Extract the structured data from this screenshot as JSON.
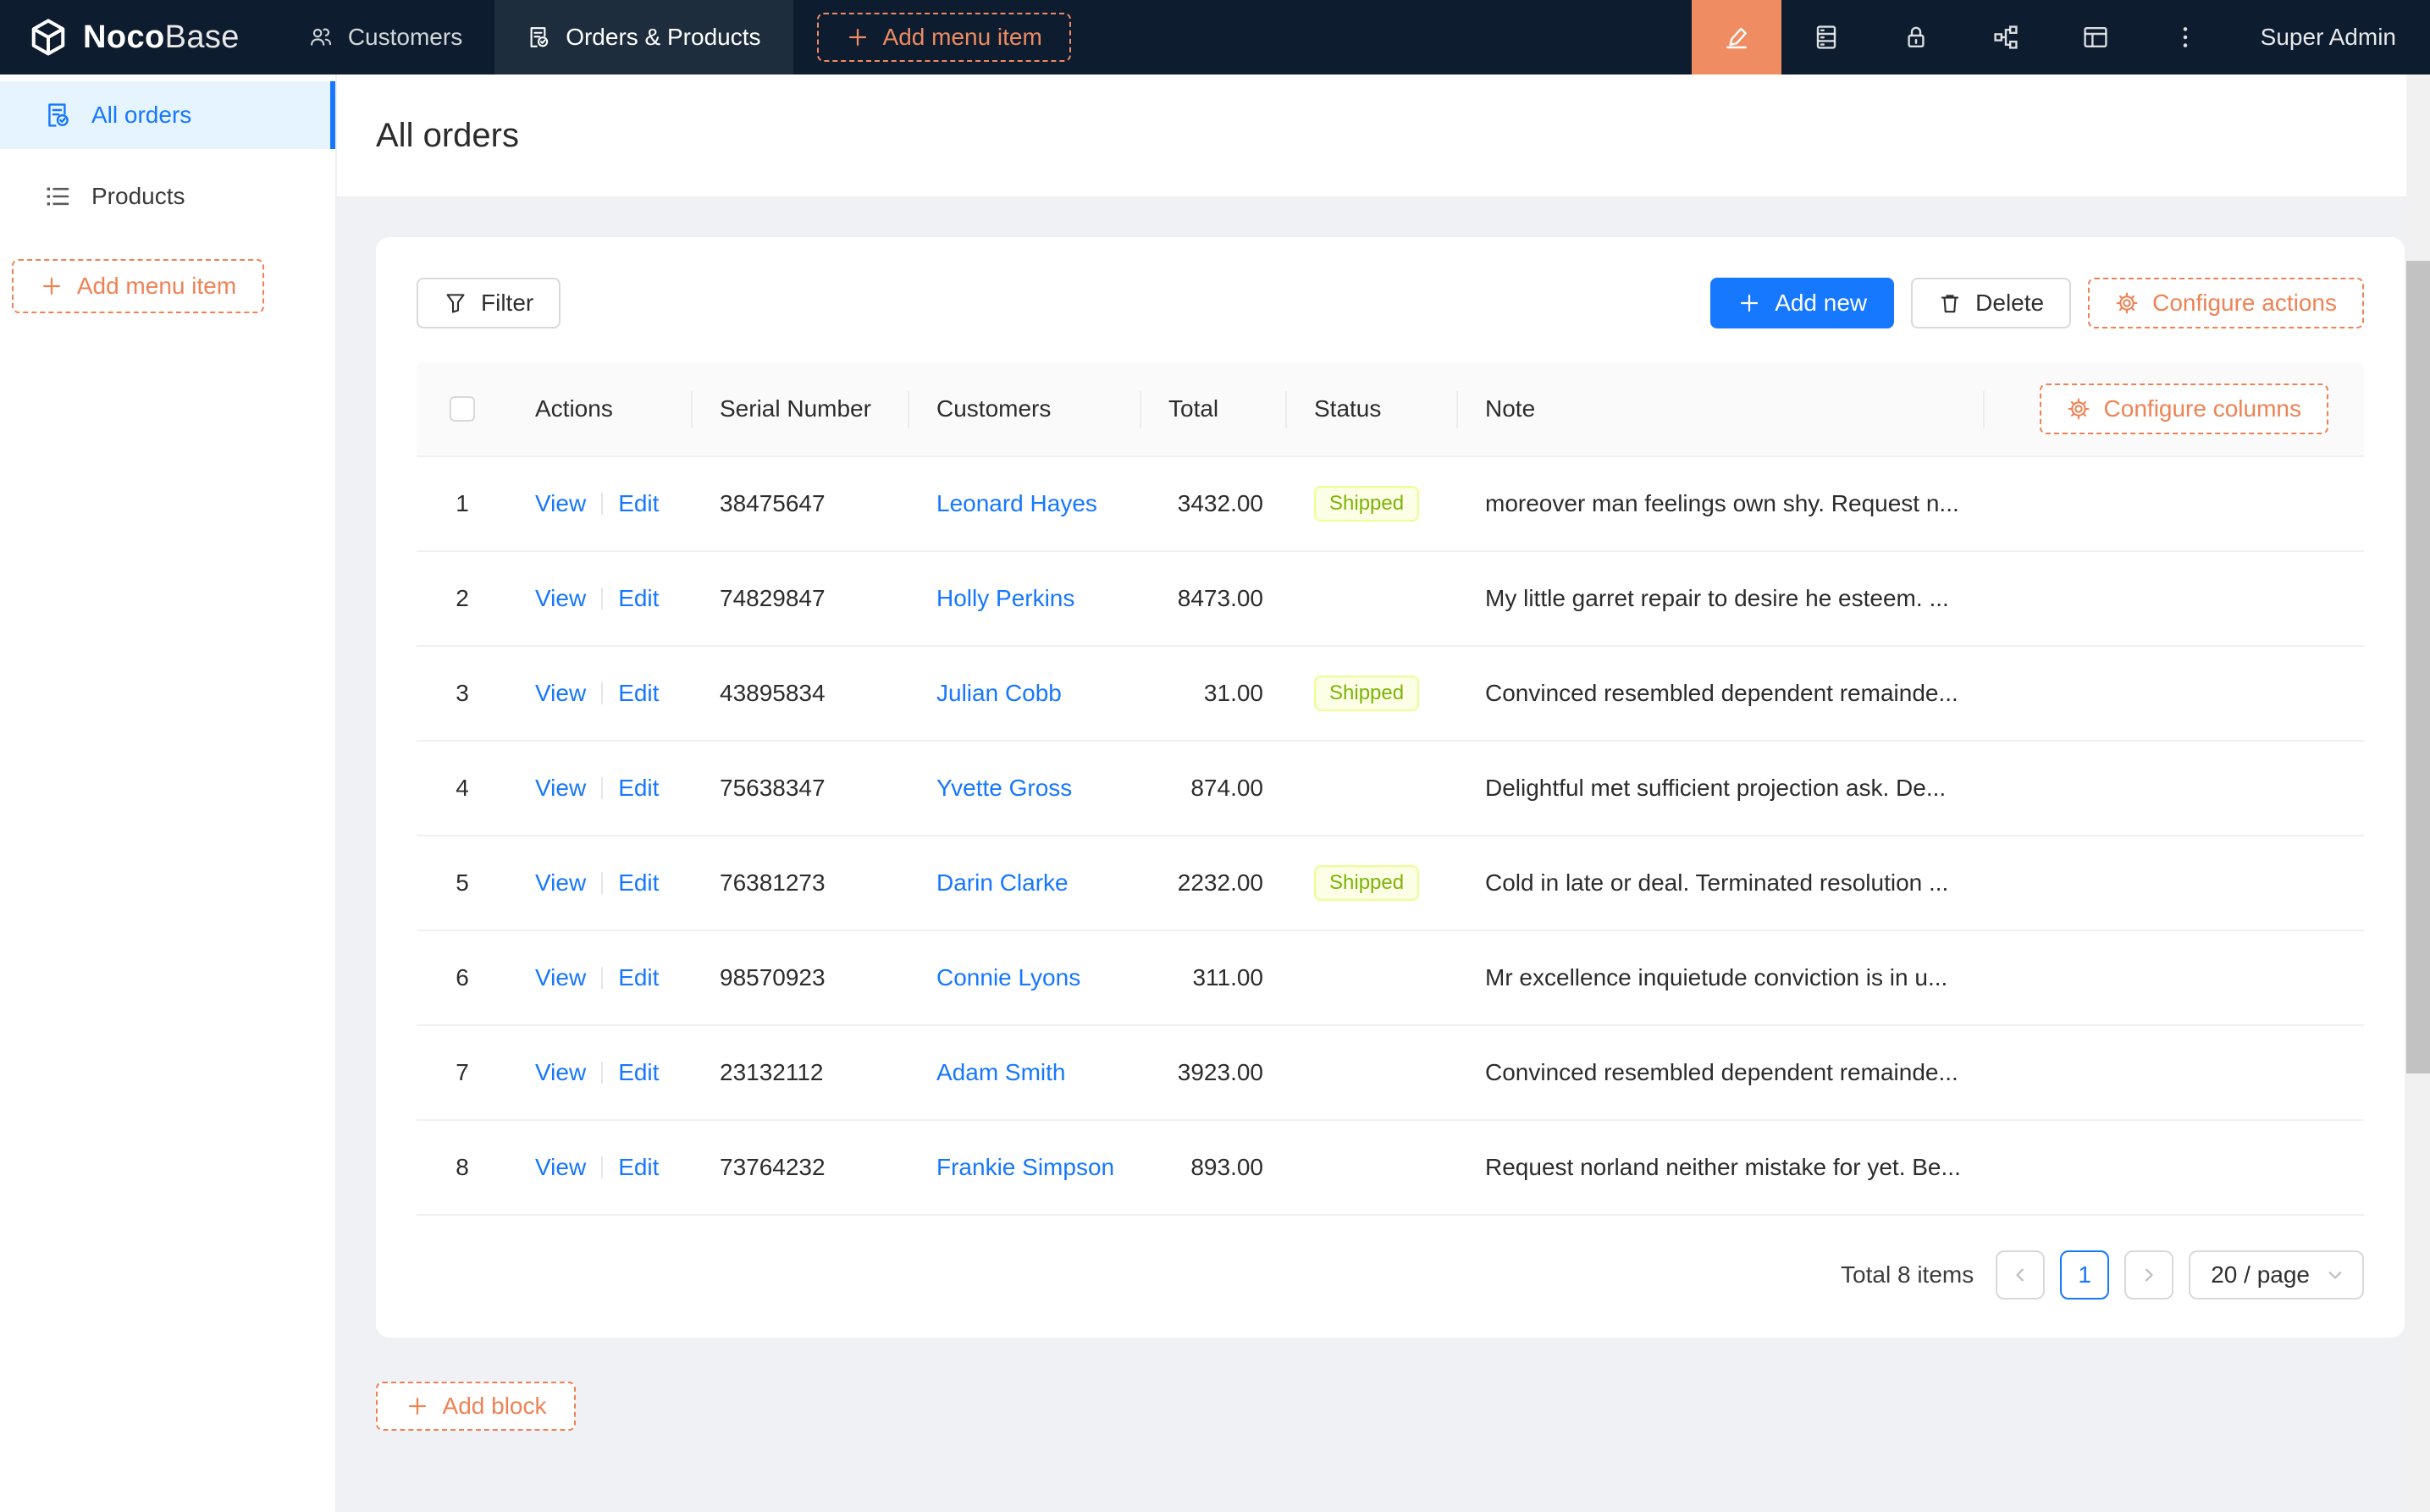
{
  "topbar": {
    "logo": {
      "bold": "Noco",
      "light": "Base"
    },
    "tabs": [
      {
        "label": "Customers",
        "icon": "team-icon",
        "active": false
      },
      {
        "label": "Orders & Products",
        "icon": "file-done-icon",
        "active": true
      }
    ],
    "add_menu_item_label": "Add menu item",
    "action_icons": [
      "highlighter-icon",
      "database-icon",
      "lock-icon",
      "partition-icon",
      "layout-icon",
      "more-vertical-icon"
    ],
    "user": "Super Admin"
  },
  "sidebar": {
    "items": [
      {
        "label": "All orders",
        "icon": "file-done-icon",
        "active": true
      },
      {
        "label": "Products",
        "icon": "list-icon",
        "active": false
      }
    ],
    "add_menu_item_label": "Add menu item"
  },
  "page": {
    "title": "All orders"
  },
  "toolbar": {
    "filter_label": "Filter",
    "add_new_label": "Add new",
    "delete_label": "Delete",
    "configure_actions_label": "Configure actions"
  },
  "table": {
    "configure_columns_label": "Configure columns",
    "columns": [
      "Actions",
      "Serial Number",
      "Customers",
      "Total",
      "Status",
      "Note"
    ],
    "action_labels": {
      "view": "View",
      "edit": "Edit"
    },
    "rows": [
      {
        "index": 1,
        "serial": "38475647",
        "customer": "Leonard Hayes",
        "total": "3432.00",
        "status": "Shipped",
        "note": "moreover man feelings own shy. Request n..."
      },
      {
        "index": 2,
        "serial": "74829847",
        "customer": "Holly Perkins",
        "total": "8473.00",
        "status": "",
        "note": "My little garret repair to desire he esteem. ..."
      },
      {
        "index": 3,
        "serial": "43895834",
        "customer": "Julian Cobb",
        "total": "31.00",
        "status": "Shipped",
        "note": "Convinced resembled dependent remainde..."
      },
      {
        "index": 4,
        "serial": "75638347",
        "customer": "Yvette Gross",
        "total": "874.00",
        "status": "",
        "note": "Delightful met sufficient projection ask. De..."
      },
      {
        "index": 5,
        "serial": "76381273",
        "customer": "Darin Clarke",
        "total": "2232.00",
        "status": "Shipped",
        "note": "Cold in late or deal. Terminated resolution ..."
      },
      {
        "index": 6,
        "serial": "98570923",
        "customer": "Connie Lyons",
        "total": "311.00",
        "status": "",
        "note": "Mr excellence inquietude conviction is in u..."
      },
      {
        "index": 7,
        "serial": "23132112",
        "customer": "Adam Smith",
        "total": "3923.00",
        "status": "",
        "note": "Convinced resembled dependent remainde..."
      },
      {
        "index": 8,
        "serial": "73764232",
        "customer": "Frankie Simpson",
        "total": "893.00",
        "status": "",
        "note": "Request norland neither mistake for yet. Be..."
      }
    ],
    "pagination": {
      "total_text": "Total 8 items",
      "current_page": "1",
      "page_size_text": "20 / page"
    }
  },
  "footer": {
    "add_block_label": "Add block"
  },
  "colors": {
    "topbar_bg": "#0d1c2f",
    "accent_orange": "#ee8255",
    "editor_button_orange": "#ef8c62",
    "primary_blue": "#1677ff",
    "sidebar_active_bg": "#e6f4ff",
    "badge_bg": "#fcffe6",
    "badge_border": "#eaff8f",
    "badge_text": "#7cb305",
    "page_bg": "#eff1f4"
  }
}
